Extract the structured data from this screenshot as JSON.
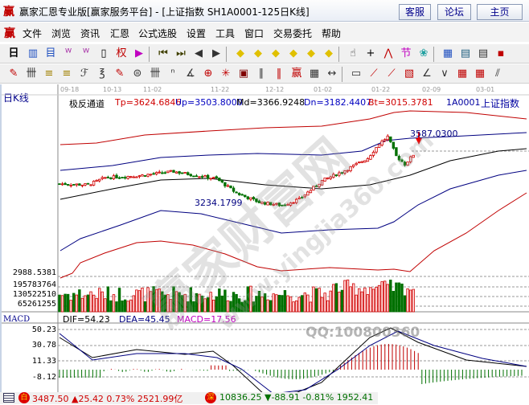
{
  "window": {
    "title": "赢家汇恩专业版[赢家服务平台] - [上证指数  SH1A0001-125日K线]",
    "logo": "赢",
    "buttons": [
      "客服",
      "论坛",
      "主页"
    ]
  },
  "menu": {
    "logo": "赢",
    "items": [
      "文件",
      "浏览",
      "资讯",
      "汇恩",
      "公式选股",
      "设置",
      "工具",
      "窗口",
      "交易委托",
      "帮助"
    ]
  },
  "toolbar1": {
    "period_label": "日",
    "icons": [
      "chart-toggle",
      "f10",
      "w3",
      "w9",
      "candle-type",
      "weight",
      "indicator",
      "first",
      "last",
      "prev",
      "next",
      "yellow-left",
      "yellow-right",
      "yellow-expand",
      "yellow-shrink",
      "yellow-in",
      "yellow-out",
      "hand",
      "crosshair",
      "draw",
      "save-formula",
      "color",
      "calendar",
      "calculator",
      "notes",
      "disk"
    ]
  },
  "toolbar2": {
    "icons": [
      "pen",
      "grid",
      "gold1",
      "gold2",
      "fib",
      "wave",
      "marker",
      "circle",
      "lines",
      "n2",
      "angle",
      "target",
      "star",
      "box",
      "parallel",
      "period",
      "logo",
      "ruler",
      "measure",
      "rect",
      "fan1",
      "fan2",
      "fan3",
      "fan4",
      "v",
      "mesh1",
      "mesh2",
      "more"
    ]
  },
  "chart": {
    "period_label": "日K线",
    "dates": [
      "09-18",
      "10-13",
      "11-02",
      "11-22",
      "12-12",
      "01-02",
      "01-22",
      "02-09",
      "03-01"
    ],
    "indicator_name": "极反通道",
    "legend": [
      {
        "text": "Tp=3624.6846",
        "color": "#d00000"
      },
      {
        "text": "Up=3503.8000",
        "color": "#0000c0"
      },
      {
        "text": "Md=3366.9248",
        "color": "#000000"
      },
      {
        "text": "Dn=3182.4407",
        "color": "#0000c0"
      },
      {
        "text": "Bt=3015.3781",
        "color": "#d00000"
      }
    ],
    "code": "1A0001",
    "name": "上证指数",
    "high_label": "3587.0300",
    "low_label": "3234.1799",
    "price_axis_bottom": "2988.5381",
    "volume_axis": [
      "195783764",
      "130522510",
      "65261255"
    ],
    "price_keypoints": [
      [
        0,
        3345
      ],
      [
        10,
        3340
      ],
      [
        16,
        3375
      ],
      [
        28,
        3385
      ],
      [
        40,
        3405
      ],
      [
        48,
        3385
      ],
      [
        55,
        3370
      ],
      [
        62,
        3300
      ],
      [
        70,
        3255
      ],
      [
        78,
        3240
      ],
      [
        84,
        3270
      ],
      [
        92,
        3360
      ],
      [
        100,
        3410
      ],
      [
        108,
        3470
      ],
      [
        112,
        3540
      ],
      [
        115,
        3575
      ],
      [
        118,
        3480
      ],
      [
        121,
        3440
      ],
      [
        124,
        3487
      ]
    ],
    "colors": {
      "up": "#d00000",
      "down": "#007000",
      "channel_outer": "#c00000",
      "channel_inner": "#000080",
      "middle": "#000000"
    }
  },
  "macd": {
    "label": "MACD",
    "dif": "DIF=54.23",
    "dea": "DEA=45.45",
    "macd": "MACD=17.56",
    "axis": [
      "50.23",
      "30.78",
      "11.33",
      "-8.12"
    ],
    "watermark_qq": "QQ:100800360"
  },
  "status": {
    "sh_badge": "白",
    "sh_text": "3487.50 ▲25.42 0.73% 2521.99亿",
    "sz_badge": "深",
    "sz_text": "10836.25 ▼-88.91 -0.81% 1952.41"
  },
  "watermark": {
    "site_cn": "赢家财富网",
    "site_url": "www.yingjia360.com"
  }
}
